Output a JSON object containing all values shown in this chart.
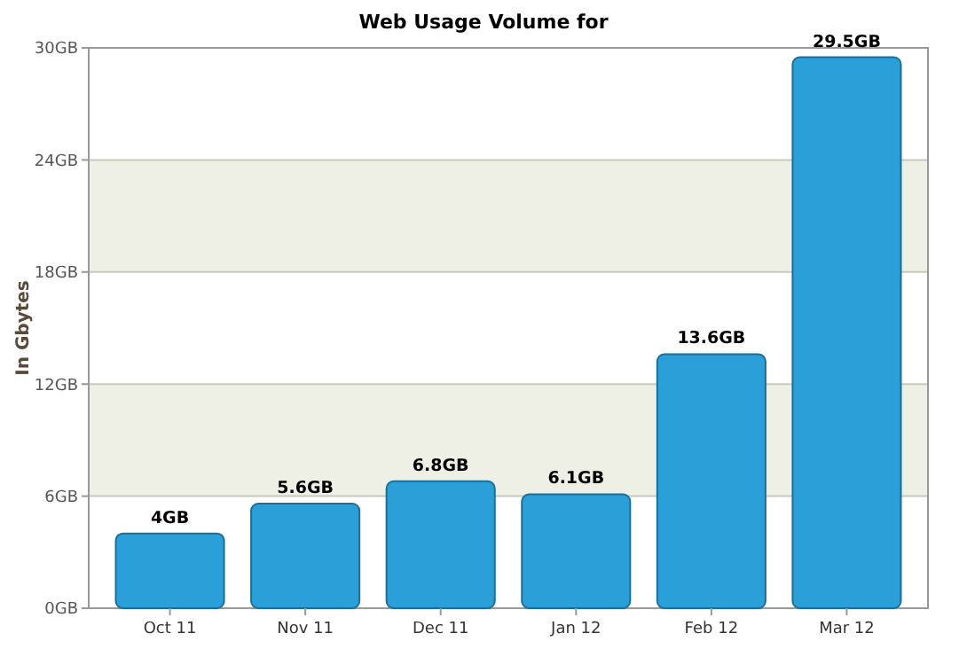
{
  "chart_data": {
    "type": "bar",
    "title": "Web Usage Volume for",
    "ylabel": "In Gbytes",
    "categories": [
      "Oct 11",
      "Nov 11",
      "Dec 11",
      "Jan 12",
      "Feb 12",
      "Mar 12"
    ],
    "values": [
      4,
      5.6,
      6.8,
      6.1,
      13.6,
      29.5
    ],
    "value_labels": [
      "4GB",
      "5.6GB",
      "6.8GB",
      "6.1GB",
      "13.6GB",
      "29.5GB"
    ],
    "color": "#2a9fd8",
    "ylim": [
      0,
      30
    ],
    "yticks": [
      {
        "value": 0,
        "label": "0GB"
      },
      {
        "value": 6,
        "label": "6GB"
      },
      {
        "value": 12,
        "label": "12GB"
      },
      {
        "value": 18,
        "label": "18GB"
      },
      {
        "value": 24,
        "label": "24GB"
      },
      {
        "value": 30,
        "label": "30GB"
      }
    ],
    "grid": "y",
    "bands": [
      {
        "axis": "y",
        "from": 6,
        "to": 12,
        "color": "#eef0e6"
      },
      {
        "axis": "y",
        "from": 18,
        "to": 24,
        "color": "#eef0e6"
      }
    ]
  }
}
